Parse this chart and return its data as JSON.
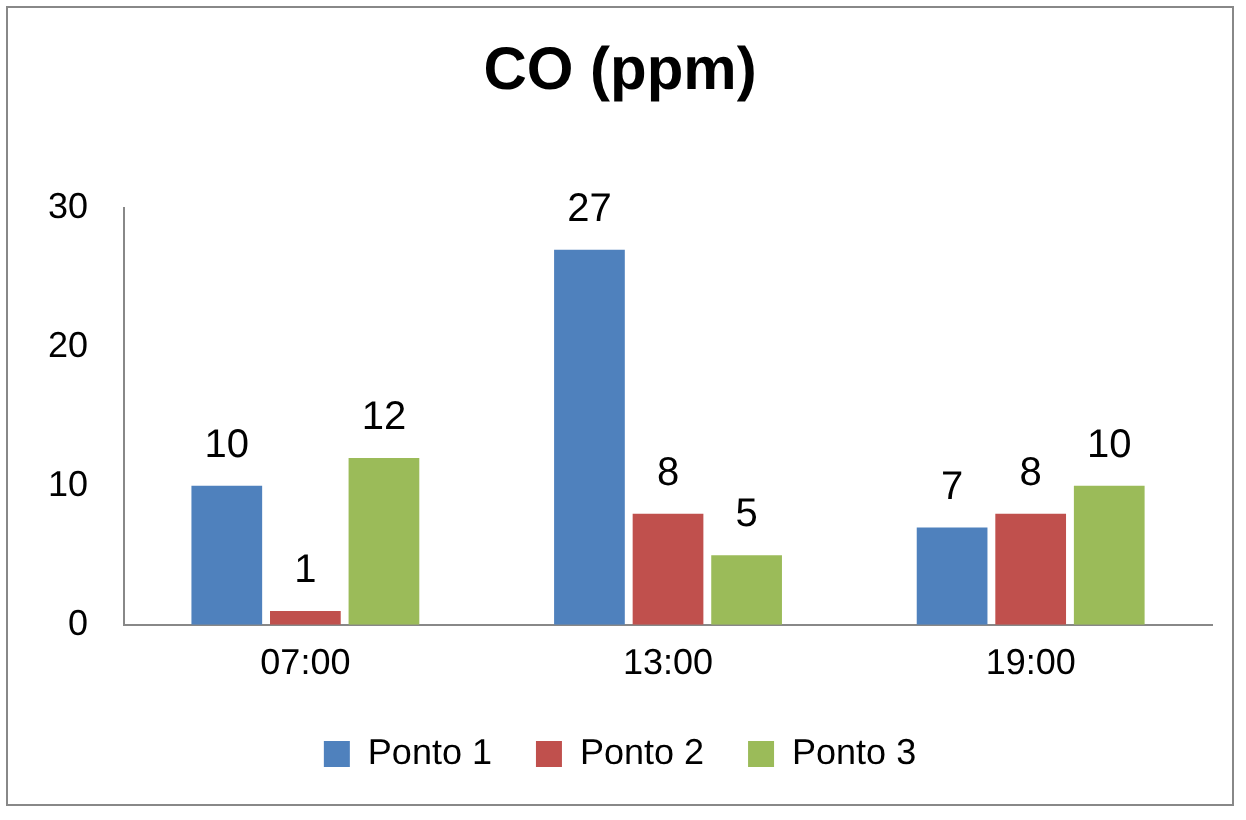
{
  "chart_data": {
    "type": "bar",
    "title": "CO (ppm)",
    "categories": [
      "07:00",
      "13:00",
      "19:00"
    ],
    "series": [
      {
        "name": "Ponto 1",
        "color": "#4f81bd",
        "values": [
          10,
          27,
          7
        ]
      },
      {
        "name": "Ponto 2",
        "color": "#c0504d",
        "values": [
          1,
          8,
          8
        ]
      },
      {
        "name": "Ponto 3",
        "color": "#9bbb59",
        "values": [
          12,
          5,
          10
        ]
      }
    ],
    "ylim": [
      0,
      30
    ],
    "yticks": [
      0,
      10,
      20,
      30
    ],
    "grid": false,
    "legend": "bottom",
    "data_labels": true
  }
}
